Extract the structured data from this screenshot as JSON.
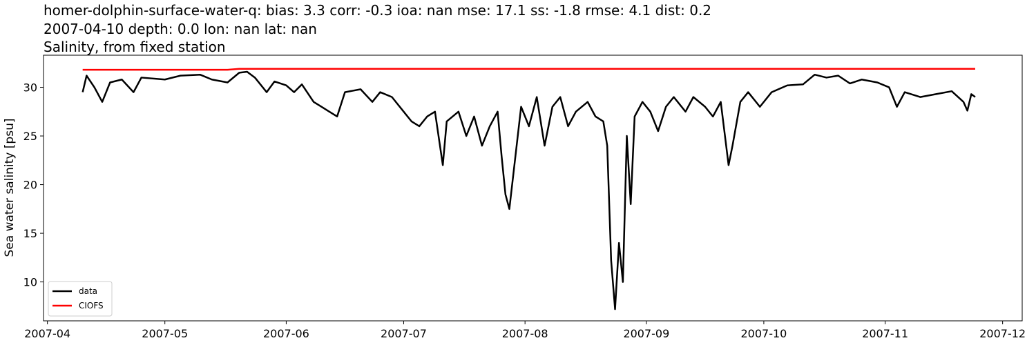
{
  "chart_data": {
    "type": "line",
    "title": [
      "homer-dolphin-surface-water-q: bias: 3.3  corr: -0.3  ioa: nan  mse: 17.1  ss: -1.8  rmse: 4.1  dist: 0.2",
      "2007-04-10 depth: 0.0 lon: nan lat: nan",
      "Salinity, from fixed station"
    ],
    "ylabel": "Sea water salinity [psu]",
    "x": [
      "2007-04-10",
      "2007-04-11",
      "2007-04-13",
      "2007-04-15",
      "2007-04-17",
      "2007-04-20",
      "2007-04-23",
      "2007-04-25",
      "2007-05-01",
      "2007-05-05",
      "2007-05-10",
      "2007-05-13",
      "2007-05-17",
      "2007-05-20",
      "2007-05-22",
      "2007-05-24",
      "2007-05-27",
      "2007-05-29",
      "2007-06-01",
      "2007-06-03",
      "2007-06-05",
      "2007-06-08",
      "2007-06-10",
      "2007-06-12",
      "2007-06-14",
      "2007-06-16",
      "2007-06-20",
      "2007-06-23",
      "2007-06-25",
      "2007-06-28",
      "2007-07-01",
      "2007-07-03",
      "2007-07-05",
      "2007-07-07",
      "2007-07-09",
      "2007-07-11",
      "2007-07-12",
      "2007-07-15",
      "2007-07-17",
      "2007-07-19",
      "2007-07-21",
      "2007-07-23",
      "2007-07-25",
      "2007-07-26",
      "2007-07-27",
      "2007-07-28",
      "2007-07-29",
      "2007-07-31",
      "2007-08-02",
      "2007-08-04",
      "2007-08-06",
      "2007-08-08",
      "2007-08-10",
      "2007-08-12",
      "2007-08-14",
      "2007-08-17",
      "2007-08-19",
      "2007-08-21",
      "2007-08-22",
      "2007-08-23",
      "2007-08-24",
      "2007-08-25",
      "2007-08-26",
      "2007-08-27",
      "2007-08-28",
      "2007-08-29",
      "2007-08-31",
      "2007-09-02",
      "2007-09-04",
      "2007-09-06",
      "2007-09-08",
      "2007-09-11",
      "2007-09-13",
      "2007-09-16",
      "2007-09-18",
      "2007-09-20",
      "2007-09-22",
      "2007-09-23",
      "2007-09-25",
      "2007-09-27",
      "2007-09-30",
      "2007-10-03",
      "2007-10-07",
      "2007-10-11",
      "2007-10-14",
      "2007-10-17",
      "2007-10-20",
      "2007-10-23",
      "2007-10-26",
      "2007-10-30",
      "2007-11-02",
      "2007-11-04",
      "2007-11-06",
      "2007-11-10",
      "2007-11-14",
      "2007-11-18",
      "2007-11-21",
      "2007-11-22",
      "2007-11-23",
      "2007-11-24"
    ],
    "series": [
      {
        "name": "data",
        "color": "#000000",
        "values": [
          29.5,
          31.2,
          30.0,
          28.5,
          30.5,
          30.8,
          29.5,
          31.0,
          30.8,
          31.2,
          31.3,
          30.8,
          30.5,
          31.5,
          31.6,
          31.0,
          29.5,
          30.6,
          30.2,
          29.5,
          30.3,
          28.5,
          28.0,
          27.5,
          27.0,
          29.5,
          29.8,
          28.5,
          29.5,
          29.0,
          27.5,
          26.5,
          26.0,
          27.0,
          27.5,
          22.0,
          26.5,
          27.5,
          25.0,
          27.0,
          24.0,
          26.0,
          27.5,
          23.0,
          19.0,
          17.5,
          21.0,
          28.0,
          26.0,
          29.0,
          24.0,
          28.0,
          29.0,
          26.0,
          27.5,
          28.5,
          27.0,
          26.5,
          24.0,
          12.2,
          7.2,
          14.0,
          10.0,
          25.0,
          18.0,
          27.0,
          28.5,
          27.5,
          25.5,
          28.0,
          29.0,
          27.5,
          29.0,
          28.0,
          27.0,
          28.5,
          22.0,
          24.0,
          28.5,
          29.5,
          28.0,
          29.5,
          30.2,
          30.3,
          31.3,
          31.0,
          31.2,
          30.4,
          30.8,
          30.5,
          30.0,
          28.0,
          29.5,
          29.0,
          29.3,
          29.6,
          28.5,
          27.6,
          29.3,
          29.0
        ]
      },
      {
        "name": "CIOFS",
        "color": "#ff0000",
        "values": [
          31.8,
          31.8,
          31.8,
          31.8,
          31.8,
          31.8,
          31.8,
          31.8,
          31.8,
          31.8,
          31.8,
          31.8,
          31.8,
          31.9,
          31.9,
          31.9,
          31.9,
          31.9,
          31.9,
          31.9,
          31.9,
          31.9,
          31.9,
          31.9,
          31.9,
          31.9,
          31.9,
          31.9,
          31.9,
          31.9,
          31.9,
          31.9,
          31.9,
          31.9,
          31.9,
          31.9,
          31.9,
          31.9,
          31.9,
          31.9,
          31.9,
          31.9,
          31.9,
          31.9,
          31.9,
          31.9,
          31.9,
          31.9,
          31.9,
          31.9,
          31.9,
          31.9,
          31.9,
          31.9,
          31.9,
          31.9,
          31.9,
          31.9,
          31.9,
          31.9,
          31.9,
          31.9,
          31.9,
          31.9,
          31.9,
          31.9,
          31.9,
          31.9,
          31.9,
          31.9,
          31.9,
          31.9,
          31.9,
          31.9,
          31.9,
          31.9,
          31.9,
          31.9,
          31.9,
          31.9,
          31.9,
          31.9,
          31.9,
          31.9,
          31.9,
          31.9,
          31.9,
          31.9,
          31.9,
          31.9,
          31.9,
          31.9,
          31.9,
          31.9,
          31.9,
          31.9,
          31.9,
          31.9,
          31.9,
          31.9
        ]
      }
    ],
    "xlim": [
      "2007-03-31",
      "2007-12-06"
    ],
    "xticks": [
      {
        "value": "2007-04-01",
        "label": "2007-04"
      },
      {
        "value": "2007-05-01",
        "label": "2007-05"
      },
      {
        "value": "2007-06-01",
        "label": "2007-06"
      },
      {
        "value": "2007-07-01",
        "label": "2007-07"
      },
      {
        "value": "2007-08-01",
        "label": "2007-08"
      },
      {
        "value": "2007-09-01",
        "label": "2007-09"
      },
      {
        "value": "2007-10-01",
        "label": "2007-10"
      },
      {
        "value": "2007-11-01",
        "label": "2007-11"
      },
      {
        "value": "2007-12-01",
        "label": "2007-12"
      }
    ],
    "ylim": [
      6.0,
      33.3
    ],
    "yticks": [
      10,
      15,
      20,
      25,
      30
    ],
    "grid": false,
    "legend": "lower left"
  }
}
